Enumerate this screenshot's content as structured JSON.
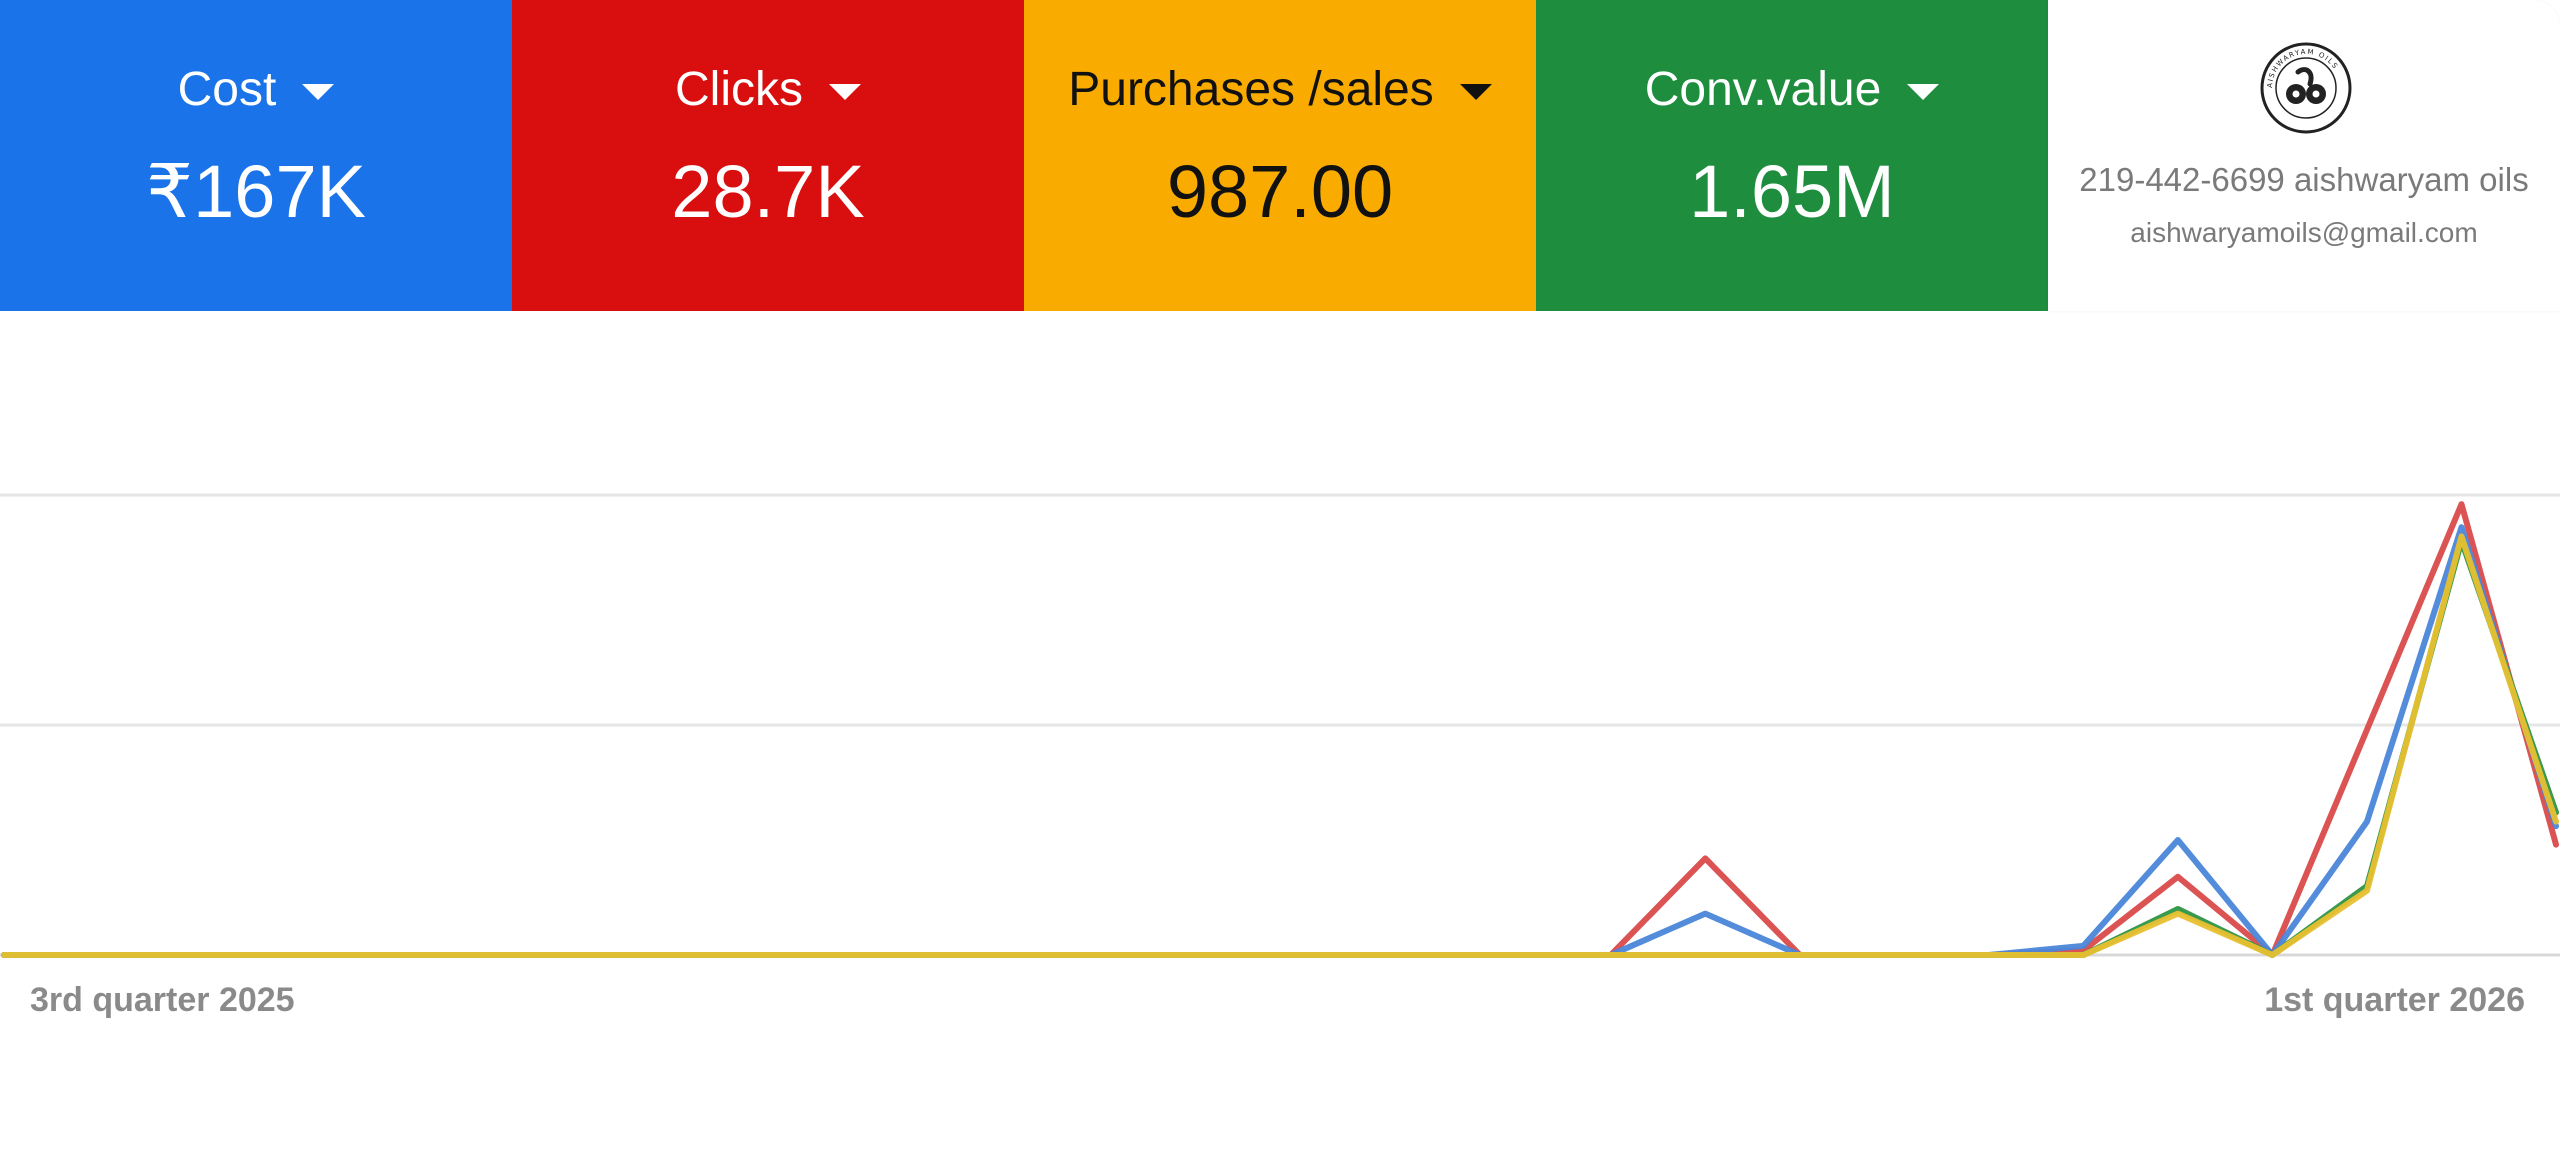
{
  "metrics": [
    {
      "label": "Cost",
      "value": "₹167K",
      "bg": "#1a73e8",
      "fg": "#ffffff"
    },
    {
      "label": "Clicks",
      "value": "28.7K",
      "bg": "#d90e0e",
      "fg": "#ffffff"
    },
    {
      "label": "Purchases /sales",
      "value": "987.00",
      "bg": "#f9ab00",
      "fg": "#111111"
    },
    {
      "label": "Conv.value",
      "value": "1.65M",
      "bg": "#1e8e3e",
      "fg": "#ffffff"
    }
  ],
  "brand": {
    "logo_icon": "aishwaryam-oils-seal-icon",
    "logo_text": "AISHWARYAM OILS",
    "phone_line": "219-442-6699 aishwaryam oils",
    "email": "aishwaryamoils@gmail.com"
  },
  "chart_data": {
    "type": "line",
    "x_tick_labels": [
      "3rd quarter 2025",
      "1st quarter 2026"
    ],
    "grid": true,
    "ylim": [
      0,
      1
    ],
    "series": [
      {
        "color": "#d94a4a",
        "values": [
          0,
          0,
          0,
          0,
          0,
          0,
          0,
          0,
          0,
          0,
          0,
          0,
          0,
          0,
          0,
          0,
          0,
          0,
          0.21,
          0,
          0,
          0,
          0.01,
          0.17,
          0,
          0.49,
          0.98,
          0.24
        ]
      },
      {
        "color": "#4a86d9",
        "values": [
          0,
          0,
          0,
          0,
          0,
          0,
          0,
          0,
          0,
          0,
          0,
          0,
          0,
          0,
          0,
          0,
          0,
          0,
          0.09,
          0,
          0,
          0,
          0.02,
          0.25,
          0,
          0.29,
          0.93,
          0.28
        ]
      },
      {
        "color": "#2e9444",
        "values": [
          0,
          0,
          0,
          0,
          0,
          0,
          0,
          0,
          0,
          0,
          0,
          0,
          0,
          0,
          0,
          0,
          0,
          0,
          0,
          0,
          0,
          0,
          0,
          0.1,
          0,
          0.15,
          0.9,
          0.31
        ]
      },
      {
        "color": "#e8c030",
        "values": [
          0,
          0,
          0,
          0,
          0,
          0,
          0,
          0,
          0,
          0,
          0,
          0,
          0,
          0,
          0,
          0,
          0,
          0,
          0,
          0,
          0,
          0,
          0,
          0.09,
          0,
          0.14,
          0.91,
          0.29
        ]
      }
    ]
  }
}
